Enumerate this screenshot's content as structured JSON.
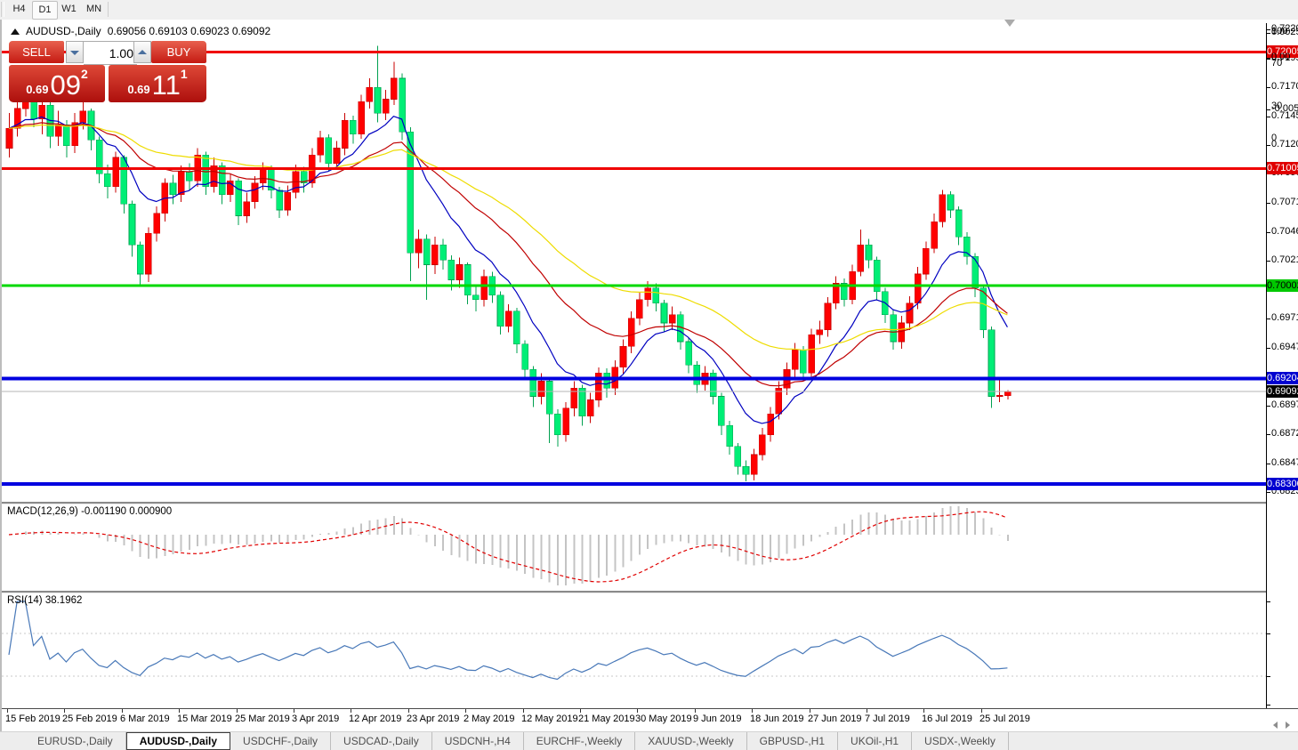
{
  "toolbar": {
    "timeframes": [
      "H4",
      "D1",
      "W1",
      "MN"
    ],
    "active_timeframe": "D1"
  },
  "chart": {
    "info_line": {
      "symbol": "AUDUSD-,Daily",
      "ohlc": "0.69056 0.69103 0.69023 0.69092"
    },
    "trade_panel": {
      "sell_label": "SELL",
      "buy_label": "BUY",
      "volume": "1.00",
      "sell_price_prefix": "0.69",
      "sell_price_big": "09",
      "sell_price_sup": "2",
      "buy_price_prefix": "0.69",
      "buy_price_big": "11",
      "buy_price_sup": "1"
    },
    "price_axis": {
      "ticks": [
        "0.72200",
        "0.71950",
        "0.71705",
        "0.71455",
        "0.71205",
        "0.70960",
        "0.70710",
        "0.70460",
        "0.70215",
        "0.69965",
        "0.69715",
        "0.69470",
        "0.68970",
        "0.68725",
        "0.68475",
        "0.68230"
      ],
      "badges": [
        {
          "text": "0.72005",
          "bg": "#e00000",
          "fg": "#ffffff"
        },
        {
          "text": "0.71005",
          "bg": "#e00000",
          "fg": "#ffffff"
        },
        {
          "text": "0.70002",
          "bg": "#00c800",
          "fg": "#000000"
        },
        {
          "text": "0.69204",
          "bg": "#0000d0",
          "fg": "#ffffff"
        },
        {
          "text": "0.69092",
          "bg": "#000000",
          "fg": "#ffffff"
        },
        {
          "text": "0.68300",
          "bg": "#0000d0",
          "fg": "#ffffff"
        }
      ]
    }
  },
  "macd": {
    "label": "MACD(12,26,9) -0.001190 0.000900",
    "axis": [
      "0.002522",
      "0.00",
      "-0.00523"
    ]
  },
  "rsi": {
    "label": "RSI(14) 38.1962",
    "axis": [
      "100",
      "70",
      "30",
      "0"
    ],
    "levels": [
      70,
      30
    ]
  },
  "date_axis": {
    "labels": [
      "15 Feb 2019",
      "25 Feb 2019",
      "6 Mar 2019",
      "15 Mar 2019",
      "25 Mar 2019",
      "3 Apr 2019",
      "12 Apr 2019",
      "23 Apr 2019",
      "2 May 2019",
      "12 May 2019",
      "21 May 2019",
      "30 May 2019",
      "9 Jun 2019",
      "18 Jun 2019",
      "27 Jun 2019",
      "7 Jul 2019",
      "16 Jul 2019",
      "25 Jul 2019"
    ]
  },
  "tabs": {
    "items": [
      "EURUSD-,Daily",
      "AUDUSD-,Daily",
      "USDCHF-,Daily",
      "USDCAD-,Daily",
      "USDCNH-,H4",
      "EURCHF-,Weekly",
      "XAUUSD-,Weekly",
      "GBPUSD-,H1",
      "UKOil-,H1",
      "USDX-,Weekly"
    ],
    "active_index": 1
  },
  "colors": {
    "candle_up": "#ff0000",
    "candle_up_border": "#c80000",
    "candle_down": "#00ee76",
    "candle_down_border": "#00a050",
    "ma_fast": "#0000c0",
    "ma_mid": "#c00000",
    "ma_slow": "#eedc00",
    "macd_hist": "#c4c4c4",
    "macd_signal": "#e00000",
    "rsi_line": "#4878b8",
    "line_red": "#f00000",
    "line_green": "#00d800",
    "line_blue": "#0000e0",
    "line_current": "#b4b4b4"
  },
  "chart_data": {
    "type": "candlestick",
    "symbol": "AUDUSD",
    "timeframe": "Daily",
    "price_range": {
      "top": 0.72253,
      "bottom": 0.68138
    },
    "hlines": [
      {
        "price": 0.72005,
        "color": "#f00000",
        "width": 3
      },
      {
        "price": 0.71005,
        "color": "#f00000",
        "width": 3
      },
      {
        "price": 0.70002,
        "color": "#00d800",
        "width": 3
      },
      {
        "price": 0.69204,
        "color": "#0000e0",
        "width": 4
      },
      {
        "price": 0.683,
        "color": "#0000e0",
        "width": 4
      },
      {
        "price": 0.69092,
        "color": "#b4b4b4",
        "width": 1
      }
    ],
    "ma_periods": [
      {
        "period": 10,
        "color": "#0000c0"
      },
      {
        "period": 25,
        "color": "#c00000"
      },
      {
        "period": 45,
        "color": "#eedc00"
      }
    ],
    "macd_params": {
      "fast": 12,
      "slow": 26,
      "signal": 9
    },
    "rsi_period": 14,
    "candles": [
      [
        0.7118,
        0.7148,
        0.711,
        0.7135
      ],
      [
        0.7135,
        0.716,
        0.7128,
        0.7152
      ],
      [
        0.7152,
        0.7168,
        0.7145,
        0.7162
      ],
      [
        0.7162,
        0.7166,
        0.7136,
        0.7143
      ],
      [
        0.7143,
        0.7163,
        0.713,
        0.7155
      ],
      [
        0.7155,
        0.7158,
        0.7118,
        0.7128
      ],
      [
        0.7128,
        0.715,
        0.712,
        0.7138
      ],
      [
        0.7138,
        0.7142,
        0.711,
        0.712
      ],
      [
        0.712,
        0.7148,
        0.7114,
        0.714
      ],
      [
        0.714,
        0.7158,
        0.7134,
        0.715
      ],
      [
        0.715,
        0.7152,
        0.7116,
        0.7125
      ],
      [
        0.7125,
        0.7128,
        0.7088,
        0.7096
      ],
      [
        0.7096,
        0.7104,
        0.7075,
        0.7085
      ],
      [
        0.7085,
        0.7115,
        0.708,
        0.711
      ],
      [
        0.711,
        0.7112,
        0.7062,
        0.707
      ],
      [
        0.707,
        0.7073,
        0.7025,
        0.7035
      ],
      [
        0.7035,
        0.7038,
        0.7,
        0.701
      ],
      [
        0.701,
        0.705,
        0.7003,
        0.7045
      ],
      [
        0.7045,
        0.7068,
        0.7038,
        0.7062
      ],
      [
        0.7062,
        0.7092,
        0.7055,
        0.7088
      ],
      [
        0.7088,
        0.7095,
        0.707,
        0.7078
      ],
      [
        0.7078,
        0.7103,
        0.7072,
        0.7098
      ],
      [
        0.7098,
        0.7105,
        0.7082,
        0.709
      ],
      [
        0.709,
        0.7118,
        0.7085,
        0.7112
      ],
      [
        0.7112,
        0.7115,
        0.7078,
        0.7085
      ],
      [
        0.7085,
        0.711,
        0.708,
        0.7103
      ],
      [
        0.7103,
        0.7106,
        0.707,
        0.7078
      ],
      [
        0.7078,
        0.7096,
        0.7072,
        0.709
      ],
      [
        0.709,
        0.7092,
        0.7052,
        0.706
      ],
      [
        0.706,
        0.708,
        0.7054,
        0.7072
      ],
      [
        0.7072,
        0.7094,
        0.7066,
        0.7088
      ],
      [
        0.7088,
        0.7106,
        0.7082,
        0.71
      ],
      [
        0.71,
        0.7103,
        0.7075,
        0.7082
      ],
      [
        0.7082,
        0.7085,
        0.7058,
        0.7065
      ],
      [
        0.7065,
        0.7086,
        0.706,
        0.708
      ],
      [
        0.708,
        0.7104,
        0.7075,
        0.7098
      ],
      [
        0.7098,
        0.7102,
        0.708,
        0.7088
      ],
      [
        0.7088,
        0.7118,
        0.7084,
        0.7112
      ],
      [
        0.7112,
        0.7133,
        0.7106,
        0.7127
      ],
      [
        0.7127,
        0.713,
        0.7098,
        0.7105
      ],
      [
        0.7105,
        0.7124,
        0.71,
        0.7118
      ],
      [
        0.7118,
        0.7148,
        0.7112,
        0.7142
      ],
      [
        0.7142,
        0.7146,
        0.7122,
        0.713
      ],
      [
        0.713,
        0.7164,
        0.7126,
        0.7158
      ],
      [
        0.7158,
        0.7178,
        0.7152,
        0.717
      ],
      [
        0.717,
        0.7206,
        0.714,
        0.7148
      ],
      [
        0.7148,
        0.7168,
        0.7142,
        0.716
      ],
      [
        0.716,
        0.7192,
        0.7155,
        0.7178
      ],
      [
        0.7178,
        0.7182,
        0.7125,
        0.7132
      ],
      [
        0.7132,
        0.7136,
        0.7004,
        0.7028
      ],
      [
        0.7028,
        0.7048,
        0.7015,
        0.704
      ],
      [
        0.704,
        0.7044,
        0.6988,
        0.7018
      ],
      [
        0.7018,
        0.7042,
        0.701,
        0.7035
      ],
      [
        0.7035,
        0.704,
        0.7014,
        0.7022
      ],
      [
        0.7022,
        0.7026,
        0.6996,
        0.7005
      ],
      [
        0.7005,
        0.7024,
        0.6998,
        0.7018
      ],
      [
        0.7018,
        0.702,
        0.6984,
        0.6992
      ],
      [
        0.6992,
        0.7,
        0.6978,
        0.6988
      ],
      [
        0.6988,
        0.7014,
        0.6982,
        0.7008
      ],
      [
        0.7008,
        0.7012,
        0.6985,
        0.6992
      ],
      [
        0.6992,
        0.6995,
        0.6958,
        0.6965
      ],
      [
        0.6965,
        0.6984,
        0.696,
        0.6978
      ],
      [
        0.6978,
        0.6981,
        0.6942,
        0.695
      ],
      [
        0.695,
        0.6953,
        0.692,
        0.6928
      ],
      [
        0.6928,
        0.6931,
        0.6896,
        0.6905
      ],
      [
        0.6905,
        0.6925,
        0.6898,
        0.6918
      ],
      [
        0.6918,
        0.692,
        0.6865,
        0.689
      ],
      [
        0.689,
        0.6894,
        0.6862,
        0.6872
      ],
      [
        0.6872,
        0.69,
        0.6866,
        0.6895
      ],
      [
        0.6895,
        0.6918,
        0.6888,
        0.6912
      ],
      [
        0.6912,
        0.6915,
        0.688,
        0.6888
      ],
      [
        0.6888,
        0.6908,
        0.6882,
        0.6902
      ],
      [
        0.6902,
        0.693,
        0.6896,
        0.6925
      ],
      [
        0.6925,
        0.6929,
        0.6904,
        0.6912
      ],
      [
        0.6912,
        0.6936,
        0.6906,
        0.693
      ],
      [
        0.693,
        0.6954,
        0.6924,
        0.6948
      ],
      [
        0.6948,
        0.6978,
        0.6942,
        0.6972
      ],
      [
        0.6972,
        0.6994,
        0.6966,
        0.6988
      ],
      [
        0.6988,
        0.7004,
        0.6982,
        0.6998
      ],
      [
        0.6998,
        0.7002,
        0.6978,
        0.6985
      ],
      [
        0.6985,
        0.6988,
        0.696,
        0.6968
      ],
      [
        0.6968,
        0.6982,
        0.6962,
        0.6975
      ],
      [
        0.6975,
        0.6978,
        0.6945,
        0.6952
      ],
      [
        0.6952,
        0.6955,
        0.6925,
        0.6932
      ],
      [
        0.6932,
        0.6935,
        0.6908,
        0.6915
      ],
      [
        0.6915,
        0.6931,
        0.691,
        0.6925
      ],
      [
        0.6925,
        0.6928,
        0.6898,
        0.6905
      ],
      [
        0.6905,
        0.6908,
        0.6872,
        0.688
      ],
      [
        0.688,
        0.6884,
        0.6855,
        0.6862
      ],
      [
        0.6862,
        0.6865,
        0.6838,
        0.6845
      ],
      [
        0.6845,
        0.685,
        0.6832,
        0.6838
      ],
      [
        0.6838,
        0.686,
        0.6833,
        0.6855
      ],
      [
        0.6855,
        0.6878,
        0.685,
        0.6872
      ],
      [
        0.6872,
        0.6896,
        0.6866,
        0.689
      ],
      [
        0.689,
        0.6918,
        0.6885,
        0.6912
      ],
      [
        0.6912,
        0.6934,
        0.6906,
        0.6928
      ],
      [
        0.6928,
        0.6951,
        0.6922,
        0.6945
      ],
      [
        0.6945,
        0.6948,
        0.6918,
        0.6925
      ],
      [
        0.6925,
        0.6963,
        0.692,
        0.6958
      ],
      [
        0.6958,
        0.697,
        0.695,
        0.6962
      ],
      [
        0.6962,
        0.699,
        0.6956,
        0.6985
      ],
      [
        0.6985,
        0.7008,
        0.698,
        0.7002
      ],
      [
        0.7002,
        0.7006,
        0.6982,
        0.6988
      ],
      [
        0.6988,
        0.7018,
        0.6984,
        0.7012
      ],
      [
        0.7012,
        0.7048,
        0.7008,
        0.7035
      ],
      [
        0.7035,
        0.704,
        0.7015,
        0.7022
      ],
      [
        0.7022,
        0.7025,
        0.6988,
        0.6995
      ],
      [
        0.6995,
        0.6998,
        0.6968,
        0.6975
      ],
      [
        0.6975,
        0.6979,
        0.6945,
        0.6952
      ],
      [
        0.6952,
        0.6974,
        0.6946,
        0.6968
      ],
      [
        0.6968,
        0.6991,
        0.6962,
        0.6985
      ],
      [
        0.6985,
        0.7016,
        0.698,
        0.701
      ],
      [
        0.701,
        0.7038,
        0.7005,
        0.7032
      ],
      [
        0.7032,
        0.7062,
        0.7028,
        0.7055
      ],
      [
        0.7055,
        0.7082,
        0.705,
        0.7078
      ],
      [
        0.7078,
        0.7081,
        0.7058,
        0.7065
      ],
      [
        0.7065,
        0.7068,
        0.7035,
        0.7042
      ],
      [
        0.7042,
        0.7046,
        0.7018,
        0.7025
      ],
      [
        0.7025,
        0.7028,
        0.699,
        0.6998
      ],
      [
        0.6998,
        0.7001,
        0.6955,
        0.6962
      ],
      [
        0.6962,
        0.6965,
        0.6895,
        0.6905
      ],
      [
        0.6905,
        0.6919,
        0.69,
        0.6906
      ],
      [
        0.69056,
        0.69103,
        0.69023,
        0.69092
      ]
    ]
  }
}
